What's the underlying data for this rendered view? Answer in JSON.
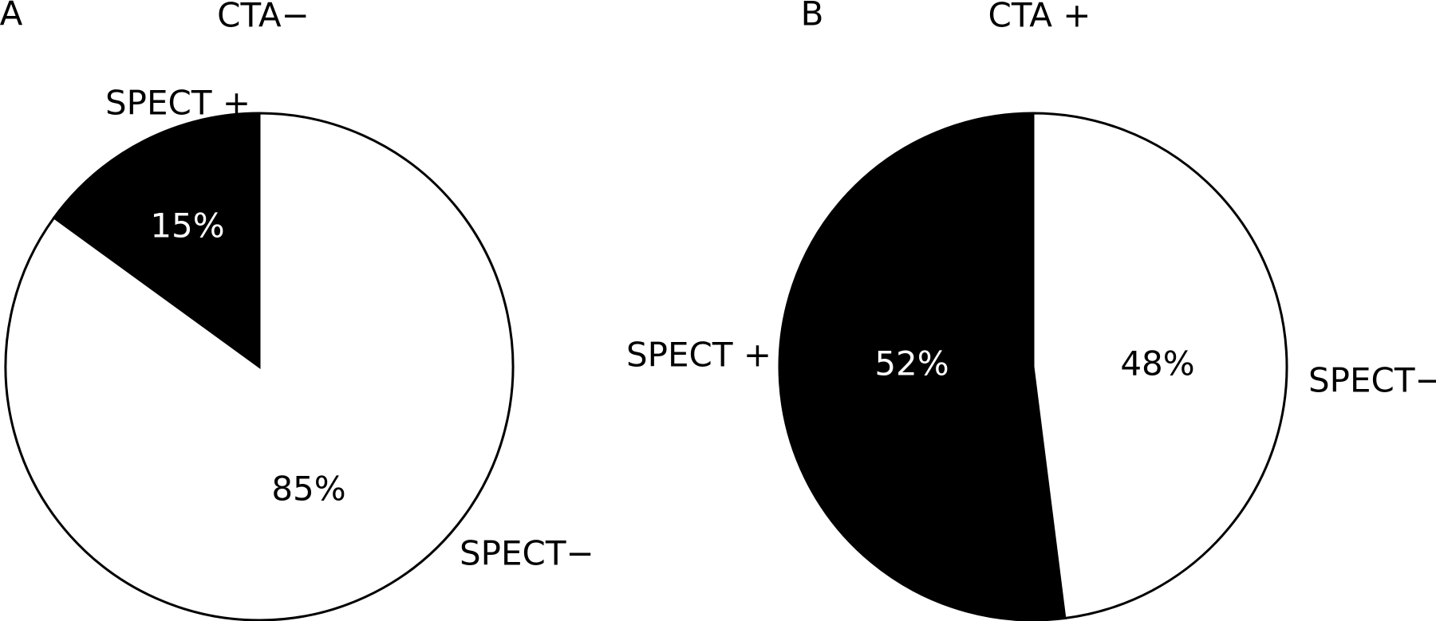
{
  "chart_data": [
    {
      "type": "pie",
      "panel_label": "A",
      "title": "CTA−",
      "categories": [
        "SPECT +",
        "SPECT−"
      ],
      "values": [
        15,
        85
      ],
      "value_labels": [
        "15%",
        "85%"
      ],
      "colors": [
        "#000000",
        "#ffffff"
      ]
    },
    {
      "type": "pie",
      "panel_label": "B",
      "title": "CTA +",
      "categories": [
        "SPECT +",
        "SPECT−"
      ],
      "values": [
        52,
        48
      ],
      "value_labels": [
        "52%",
        "48%"
      ],
      "colors": [
        "#000000",
        "#ffffff"
      ]
    }
  ]
}
